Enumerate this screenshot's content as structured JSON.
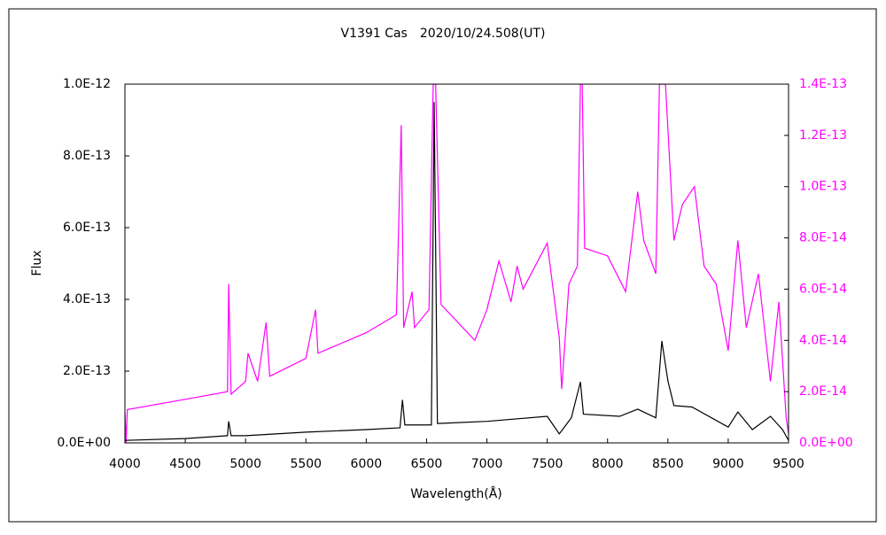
{
  "chart_data": {
    "type": "line",
    "title": "V1391 Cas　2020/10/24.508(UT)",
    "x_label": "Wavelength(Å)",
    "y_label": "Flux",
    "xlim": [
      4000,
      9500
    ],
    "xticks": [
      4000,
      4500,
      5000,
      5500,
      6000,
      6500,
      7000,
      7500,
      8000,
      8500,
      9000,
      9500
    ],
    "ylim": [
      0,
      1e-12
    ],
    "yticks": [
      {
        "value": 0,
        "label": "0.0E+00"
      },
      {
        "value": 2e-13,
        "label": "2.0E-13"
      },
      {
        "value": 4e-13,
        "label": "4.0E-13"
      },
      {
        "value": 6e-13,
        "label": "6.0E-13"
      },
      {
        "value": 8e-13,
        "label": "8.0E-13"
      },
      {
        "value": 1e-12,
        "label": "1.0E-12"
      }
    ],
    "y2lim": [
      0,
      1.4e-13
    ],
    "y2ticks": [
      {
        "value": 0,
        "label": "0.0E+00"
      },
      {
        "value": 2e-14,
        "label": "2.0E-14"
      },
      {
        "value": 4e-14,
        "label": "4.0E-14"
      },
      {
        "value": 6e-14,
        "label": "6.0E-14"
      },
      {
        "value": 8e-14,
        "label": "8.0E-14"
      },
      {
        "value": 1e-13,
        "label": "1.0E-13"
      },
      {
        "value": 1.2e-13,
        "label": "1.2E-13"
      },
      {
        "value": 1.4e-13,
        "label": "1.4E-13"
      }
    ],
    "y2color": "#ff00ff",
    "grid": false,
    "series": [
      {
        "color": "#ff00ff",
        "axis": "y2",
        "x": [
          4000,
          4010,
          4020,
          4500,
          4850,
          4860,
          4880,
          5000,
          5020,
          5100,
          5170,
          5200,
          5500,
          5580,
          5600,
          6000,
          6250,
          6290,
          6310,
          6380,
          6400,
          6520,
          6555,
          6575,
          6620,
          6900,
          7000,
          7100,
          7200,
          7250,
          7300,
          7500,
          7600,
          7620,
          7680,
          7750,
          7775,
          7790,
          7810,
          8000,
          8150,
          8250,
          8300,
          8400,
          8430,
          8480,
          8510,
          8550,
          8620,
          8720,
          8800,
          8900,
          9000,
          9080,
          9150,
          9250,
          9350,
          9420,
          9480,
          9500
        ],
        "values": [
          1.2e-14,
          0,
          1.3e-14,
          1.7e-14,
          2e-14,
          6.2e-14,
          1.9e-14,
          2.4e-14,
          3.5e-14,
          2.4e-14,
          4.7e-14,
          2.6e-14,
          3.3e-14,
          5.2e-14,
          3.5e-14,
          4.3e-14,
          5e-14,
          1.24e-13,
          4.5e-14,
          5.9e-14,
          4.5e-14,
          5.2e-14,
          1.4e-13,
          1.4e-13,
          5.4e-14,
          4e-14,
          5.2e-14,
          7.1e-14,
          5.5e-14,
          6.9e-14,
          6e-14,
          7.8e-14,
          4.1e-14,
          2.1e-14,
          6.2e-14,
          6.9e-14,
          1.4e-13,
          1.4e-13,
          7.6e-14,
          7.3e-14,
          5.9e-14,
          9.8e-14,
          7.9e-14,
          6.6e-14,
          1.4e-13,
          1.4e-13,
          1.14e-13,
          7.9e-14,
          9.3e-14,
          1e-13,
          6.9e-14,
          6.2e-14,
          3.6e-14,
          7.9e-14,
          4.5e-14,
          6.6e-14,
          2.4e-14,
          5.5e-14,
          1e-14,
          3.5e-15
        ]
      },
      {
        "color": "#000000",
        "x": [
          4000,
          4500,
          4850,
          4860,
          4880,
          5000,
          5500,
          6000,
          6280,
          6300,
          6320,
          6540,
          6563,
          6590,
          7000,
          7500,
          7600,
          7700,
          7775,
          7800,
          8100,
          8250,
          8400,
          8450,
          8500,
          8550,
          8700,
          9000,
          9080,
          9200,
          9350,
          9450,
          9500
        ],
        "values": [
          7e-15,
          1.2e-14,
          2e-14,
          6e-14,
          2e-14,
          2e-14,
          3e-14,
          3.7e-14,
          4.2e-14,
          1.2e-13,
          5e-14,
          5e-14,
          9.5e-13,
          5.4e-14,
          6e-14,
          7.4e-14,
          2.5e-14,
          7e-14,
          1.7e-13,
          8e-14,
          7.4e-14,
          9.4e-14,
          7e-14,
          2.84e-13,
          1.73e-13,
          1.04e-13,
          1e-13,
          4.4e-14,
          8.6e-14,
          3.7e-14,
          7.4e-14,
          3.7e-14,
          7e-15
        ]
      }
    ]
  }
}
